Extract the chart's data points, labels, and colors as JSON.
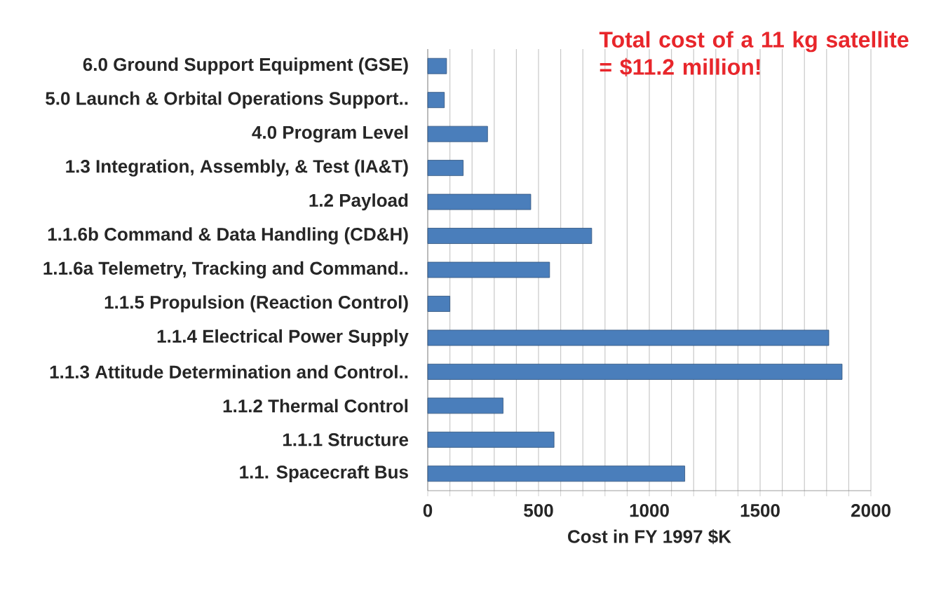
{
  "chart_data": {
    "type": "bar",
    "orientation": "horizontal",
    "categories": [
      "6.0 Ground Support Equipment (GSE)",
      "5.0 Launch & Orbital Operations Support..",
      "4.0 Program Level",
      "1.3 Integration, Assembly, & Test (IA&T)",
      "1.2 Payload",
      "1.1.6b Command & Data Handling (CD&H)",
      "1.1.6a Telemetry, Tracking and Command..",
      "1.1.5 Propulsion (Reaction Control)",
      "1.1.4 Electrical Power Supply",
      "1.1.3 Attitude Determination and Control..",
      "1.1.2 Thermal Control",
      "1.1.1 Structure",
      "1.1. Spacecraft Bus"
    ],
    "values": [
      85,
      75,
      270,
      160,
      465,
      740,
      550,
      100,
      1810,
      1870,
      340,
      570,
      1160
    ],
    "color": "#4a7ebb",
    "xlabel": "Cost in FY 1997 $K",
    "xlim": [
      0,
      2000
    ],
    "xticks": [
      0,
      {
        "value": 100,
        "label": null
      },
      {
        "value": 200,
        "label": null
      },
      {
        "value": 300,
        "label": null
      },
      {
        "value": 400,
        "label": null
      },
      500,
      {
        "value": 600,
        "label": null
      },
      {
        "value": 700,
        "label": null
      },
      {
        "value": 800,
        "label": null
      },
      {
        "value": 900,
        "label": null
      },
      1000,
      {
        "value": 1100,
        "label": null
      },
      {
        "value": 1200,
        "label": null
      },
      {
        "value": 1300,
        "label": null
      },
      {
        "value": 1400,
        "label": null
      },
      1500,
      {
        "value": 1600,
        "label": null
      },
      {
        "value": 1700,
        "label": null
      },
      {
        "value": 1800,
        "label": null
      },
      {
        "value": 1900,
        "label": null
      },
      2000
    ],
    "grid": "x",
    "annotations": [
      "Total cost of a 11 kg satellite = $11.2 million!"
    ]
  }
}
